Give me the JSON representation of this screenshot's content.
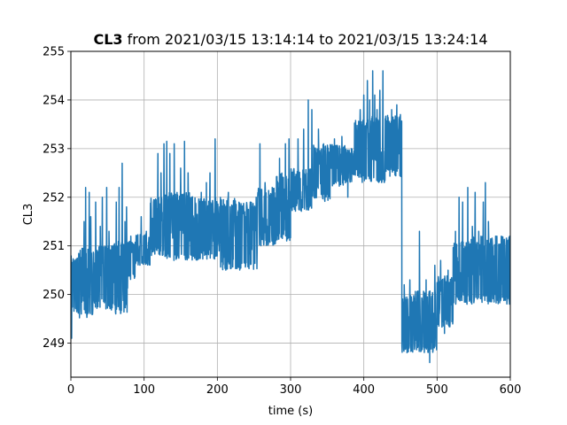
{
  "chart_data": {
    "type": "line",
    "title_bold": "CL3",
    "title_rest": " from 2021/03/15 13:14:14 to 2021/03/15 13:24:14",
    "xlabel": "time (s)",
    "ylabel": "CL3",
    "xlim": [
      0,
      600
    ],
    "ylim": [
      248.3,
      255
    ],
    "xticks": [
      0,
      100,
      200,
      300,
      400,
      500,
      600
    ],
    "yticks": [
      249,
      250,
      251,
      252,
      253,
      254,
      255
    ],
    "grid": true,
    "color": "#1f77b4",
    "series": [
      {
        "name": "",
        "segments": [
          {
            "t0": 0,
            "t1": 10,
            "lo": 249.6,
            "hi": 250.8,
            "spikes": [
              [
                1,
                249.1
              ],
              [
                5,
                250.4
              ]
            ]
          },
          {
            "t0": 10,
            "t1": 30,
            "lo": 249.5,
            "hi": 250.95,
            "spikes": [
              [
                18,
                251.5
              ],
              [
                20,
                252.2
              ],
              [
                25,
                252.1
              ],
              [
                27,
                251.6
              ]
            ]
          },
          {
            "t0": 30,
            "t1": 55,
            "lo": 249.7,
            "hi": 251.0,
            "spikes": [
              [
                34,
                251.9
              ],
              [
                40,
                251.4
              ],
              [
                43,
                252.0
              ],
              [
                49,
                252.2
              ],
              [
                52,
                251.3
              ]
            ]
          },
          {
            "t0": 55,
            "t1": 78,
            "lo": 249.6,
            "hi": 251.1,
            "spikes": [
              [
                62,
                251.9
              ],
              [
                66,
                252.2
              ],
              [
                70,
                252.7
              ],
              [
                74,
                251.5
              ],
              [
                76,
                251.8
              ]
            ]
          },
          {
            "t0": 78,
            "t1": 88,
            "lo": 250.3,
            "hi": 251.1,
            "spikes": [
              [
                82,
                251.2
              ]
            ]
          },
          {
            "t0": 88,
            "t1": 108,
            "lo": 250.6,
            "hi": 251.25,
            "spikes": [
              [
                96,
                251.6
              ],
              [
                103,
                251.3
              ]
            ]
          },
          {
            "t0": 108,
            "t1": 125,
            "lo": 250.8,
            "hi": 252.0,
            "spikes": [
              [
                113,
                251.9
              ],
              [
                119,
                252.9
              ],
              [
                123,
                252.5
              ]
            ]
          },
          {
            "t0": 125,
            "t1": 145,
            "lo": 250.7,
            "hi": 252.1,
            "spikes": [
              [
                127,
                253.1
              ],
              [
                131,
                253.15
              ],
              [
                135,
                252.9
              ],
              [
                141,
                253.1
              ]
            ]
          },
          {
            "t0": 145,
            "t1": 170,
            "lo": 250.7,
            "hi": 252.1,
            "spikes": [
              [
                150,
                252.6
              ],
              [
                155,
                253.15
              ],
              [
                160,
                252.5
              ],
              [
                165,
                252.0
              ]
            ]
          },
          {
            "t0": 170,
            "t1": 200,
            "lo": 250.7,
            "hi": 252.0,
            "spikes": [
              [
                178,
                252.1
              ],
              [
                185,
                252.3
              ],
              [
                190,
                252.5
              ],
              [
                197,
                253.2
              ]
            ]
          },
          {
            "t0": 200,
            "t1": 225,
            "lo": 250.5,
            "hi": 252.0,
            "spikes": [
              [
                210,
                251.8
              ],
              [
                215,
                252.1
              ],
              [
                220,
                251.7
              ]
            ]
          },
          {
            "t0": 225,
            "t1": 255,
            "lo": 250.5,
            "hi": 251.9,
            "spikes": [
              [
                235,
                251.7
              ],
              [
                245,
                251.9
              ],
              [
                253,
                252.0
              ]
            ]
          },
          {
            "t0": 255,
            "t1": 280,
            "lo": 251.0,
            "hi": 252.2,
            "spikes": [
              [
                258,
                253.1
              ],
              [
                265,
                252.3
              ],
              [
                275,
                252.2
              ]
            ]
          },
          {
            "t0": 280,
            "t1": 300,
            "lo": 251.1,
            "hi": 252.5,
            "spikes": [
              [
                285,
                252.8
              ],
              [
                293,
                253.1
              ],
              [
                298,
                253.2
              ]
            ]
          },
          {
            "t0": 300,
            "t1": 330,
            "lo": 251.7,
            "hi": 252.6,
            "spikes": [
              [
                310,
                253.2
              ],
              [
                318,
                253.4
              ],
              [
                324,
                254.0
              ],
              [
                329,
                253.8
              ]
            ]
          },
          {
            "t0": 330,
            "t1": 355,
            "lo": 251.9,
            "hi": 253.1,
            "spikes": [
              [
                338,
                253.4
              ],
              [
                345,
                253.1
              ],
              [
                350,
                253.0
              ]
            ]
          },
          {
            "t0": 355,
            "t1": 375,
            "lo": 252.2,
            "hi": 253.1,
            "spikes": [
              [
                360,
                253.2
              ],
              [
                370,
                253.25
              ]
            ]
          },
          {
            "t0": 375,
            "t1": 387,
            "lo": 252.3,
            "hi": 253.0,
            "spikes": [
              [
                378,
                252.0
              ],
              [
                383,
                253.0
              ]
            ]
          },
          {
            "t0": 387,
            "t1": 410,
            "lo": 252.3,
            "hi": 253.6,
            "spikes": [
              [
                395,
                253.8
              ],
              [
                400,
                254.1
              ],
              [
                405,
                254.4
              ],
              [
                408,
                254.0
              ]
            ]
          },
          {
            "t0": 410,
            "t1": 430,
            "lo": 252.3,
            "hi": 253.7,
            "spikes": [
              [
                412,
                254.6
              ],
              [
                415,
                254.1
              ],
              [
                418,
                253.8
              ],
              [
                422,
                254.2
              ],
              [
                426,
                254.6
              ]
            ]
          },
          {
            "t0": 430,
            "t1": 452,
            "lo": 252.4,
            "hi": 253.7,
            "spikes": [
              [
                438,
                253.8
              ],
              [
                445,
                253.9
              ],
              [
                450,
                253.7
              ]
            ]
          },
          {
            "t0": 452,
            "t1": 470,
            "lo": 248.8,
            "hi": 250.0,
            "spikes": [
              [
                455,
                250.2
              ],
              [
                463,
                250.3
              ],
              [
                467,
                249.0
              ]
            ]
          },
          {
            "t0": 470,
            "t1": 500,
            "lo": 248.8,
            "hi": 250.1,
            "spikes": [
              [
                476,
                251.3
              ],
              [
                485,
                250.3
              ],
              [
                490,
                248.6
              ],
              [
                497,
                250.6
              ]
            ]
          },
          {
            "t0": 500,
            "t1": 522,
            "lo": 249.3,
            "hi": 250.4,
            "spikes": [
              [
                505,
                250.7
              ],
              [
                510,
                249.2
              ],
              [
                515,
                250.5
              ]
            ]
          },
          {
            "t0": 522,
            "t1": 545,
            "lo": 249.8,
            "hi": 251.1,
            "spikes": [
              [
                525,
                251.3
              ],
              [
                530,
                252.0
              ],
              [
                535,
                251.9
              ],
              [
                542,
                252.2
              ]
            ]
          },
          {
            "t0": 545,
            "t1": 560,
            "lo": 249.8,
            "hi": 251.2,
            "spikes": [
              [
                548,
                251.4
              ],
              [
                552,
                252.1
              ],
              [
                557,
                251.3
              ]
            ]
          },
          {
            "t0": 560,
            "t1": 600,
            "lo": 249.8,
            "hi": 251.2,
            "spikes": [
              [
                563,
                251.9
              ],
              [
                566,
                252.3
              ],
              [
                570,
                251.5
              ],
              [
                580,
                251.2
              ],
              [
                595,
                251.1
              ]
            ]
          }
        ]
      }
    ]
  }
}
